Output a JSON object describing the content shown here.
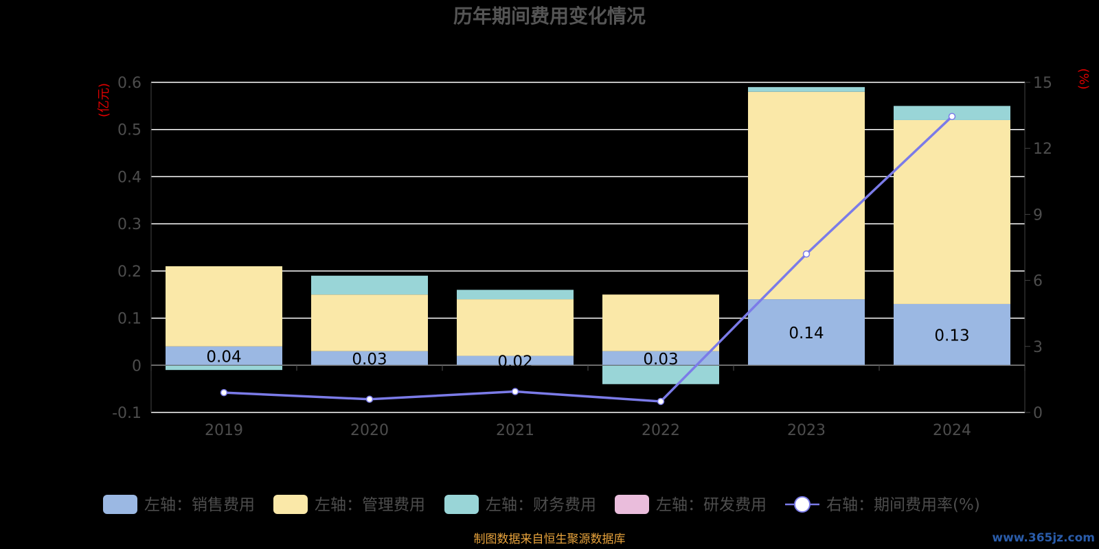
{
  "chart_data": {
    "type": "bar",
    "title": "历年期间费用变化情况",
    "categories": [
      "2019",
      "2020",
      "2021",
      "2022",
      "2023",
      "2024"
    ],
    "left_axis": {
      "unit": "(亿元)",
      "ylim": [
        -0.1,
        0.6
      ],
      "ticks": [
        "-0.1",
        "0",
        "0.1",
        "0.2",
        "0.3",
        "0.4",
        "0.5",
        "0.6"
      ],
      "tick_values": [
        -0.1,
        0,
        0.1,
        0.2,
        0.3,
        0.4,
        0.5,
        0.6
      ]
    },
    "right_axis": {
      "unit": "(%)",
      "ylim": [
        0,
        15
      ],
      "ticks": [
        "0",
        "3",
        "6",
        "9",
        "12",
        "15"
      ],
      "tick_values": [
        0,
        3,
        6,
        9,
        12,
        15
      ]
    },
    "series": [
      {
        "name": "左轴：销售费用",
        "type": "stacked-bar",
        "axis": "left",
        "color": "#9bb8e3",
        "values": [
          0.04,
          0.03,
          0.02,
          0.03,
          0.14,
          0.13
        ],
        "labels": [
          "0.04",
          "0.03",
          "0.02",
          "0.03",
          "0.14",
          "0.13"
        ]
      },
      {
        "name": "左轴：管理费用",
        "type": "stacked-bar",
        "axis": "left",
        "color": "#fae8a8",
        "values": [
          0.17,
          0.12,
          0.12,
          0.12,
          0.44,
          0.39
        ]
      },
      {
        "name": "左轴：财务费用",
        "type": "stacked-bar",
        "axis": "left",
        "color": "#99d5d7",
        "values": [
          -0.01,
          0.04,
          0.02,
          -0.04,
          0.01,
          0.03
        ]
      },
      {
        "name": "左轴：研发费用",
        "type": "stacked-bar",
        "axis": "left",
        "color": "#eabddc",
        "values": [
          0,
          0,
          0,
          0,
          0,
          0
        ]
      },
      {
        "name": "右轴：期间费用率(%)",
        "type": "line",
        "axis": "right",
        "color": "#7b7be8",
        "values": [
          0.9,
          0.6,
          0.95,
          0.5,
          7.2,
          13.45
        ]
      }
    ],
    "grid": true,
    "legend_position": "bottom"
  },
  "footer": {
    "source": "制图数据来自恒生聚源数据库",
    "watermark": "www.365jz.com"
  }
}
